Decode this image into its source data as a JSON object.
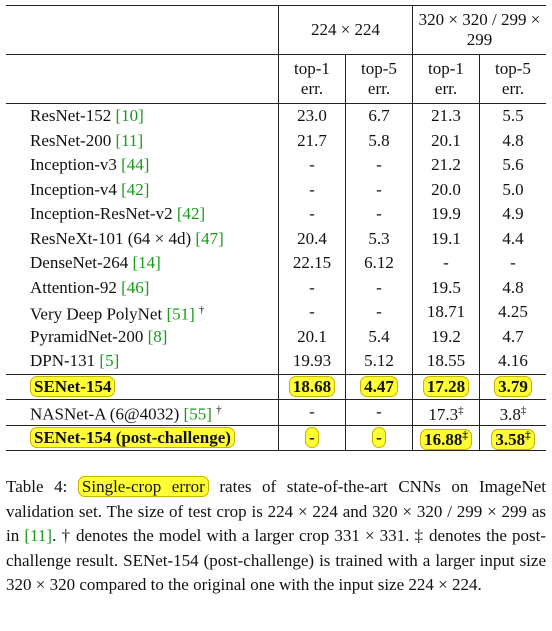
{
  "table": {
    "groups": [
      "224 × 224",
      "320 × 320 / 299 × 299"
    ],
    "subheaders": [
      "top-1 err.",
      "top-5 err.",
      "top-1 err.",
      "top-5 err."
    ],
    "rows": [
      {
        "model": "ResNet-152",
        "ref": "[10]",
        "cells": [
          "23.0",
          "6.7",
          "21.3",
          "5.5"
        ]
      },
      {
        "model": "ResNet-200",
        "ref": "[11]",
        "cells": [
          "21.7",
          "5.8",
          "20.1",
          "4.8"
        ]
      },
      {
        "model": "Inception-v3",
        "ref": "[44]",
        "cells": [
          "-",
          "-",
          "21.2",
          "5.6"
        ]
      },
      {
        "model": "Inception-v4",
        "ref": "[42]",
        "cells": [
          "-",
          "-",
          "20.0",
          "5.0"
        ]
      },
      {
        "model": "Inception-ResNet-v2",
        "ref": "[42]",
        "cells": [
          "-",
          "-",
          "19.9",
          "4.9"
        ]
      },
      {
        "model": "ResNeXt-101 (64 × 4d)",
        "ref": "[47]",
        "cells": [
          "20.4",
          "5.3",
          "19.1",
          "4.4"
        ]
      },
      {
        "model": "DenseNet-264",
        "ref": "[14]",
        "cells": [
          "22.15",
          "6.12",
          "-",
          "-"
        ]
      },
      {
        "model": "Attention-92",
        "ref": "[46]",
        "cells": [
          "-",
          "-",
          "19.5",
          "4.8"
        ]
      },
      {
        "model": "Very Deep PolyNet",
        "ref": "[51]",
        "mark": "†",
        "cells": [
          "-",
          "-",
          "18.71",
          "4.25"
        ]
      },
      {
        "model": "PyramidNet-200",
        "ref": "[8]",
        "cells": [
          "20.1",
          "5.4",
          "19.2",
          "4.7"
        ]
      },
      {
        "model": "DPN-131",
        "ref": "[5]",
        "cells": [
          "19.93",
          "5.12",
          "18.55",
          "4.16"
        ]
      },
      {
        "model": "SENet-154",
        "bold": true,
        "highlight": true,
        "cells": [
          "18.68",
          "4.47",
          "17.28",
          "3.79"
        ]
      },
      {
        "model": "NASNet-A (6@4032)",
        "ref": "[55]",
        "mark": "†",
        "cells": [
          "-",
          "-",
          {
            "text": "17.3",
            "sup": "‡"
          },
          {
            "text": "3.8",
            "sup": "‡"
          }
        ]
      },
      {
        "model": "SENet-154 (post-challenge)",
        "bold": true,
        "highlight": true,
        "cells": [
          "-",
          "-",
          {
            "text": "16.88",
            "sup": "‡"
          },
          {
            "text": "3.58",
            "sup": "‡"
          }
        ]
      }
    ]
  },
  "caption": [
    {
      "text": "Table 4: "
    },
    {
      "text": "Single-crop error",
      "highlight": true
    },
    {
      "text": " rates of state-of-the-art CNNs on ImageNet validation set. The size of test crop is 224 × 224 and 320 × 320 / 299 × 299 as in "
    },
    {
      "text": "[11]",
      "ref": true
    },
    {
      "text": ". † denotes the model with a larger crop 331 × 331. ‡ denotes the post-challenge result. SENet-154 (post-challenge) is trained with a larger input size 320 × 320 compared to the original one with the input size 224 × 224."
    }
  ]
}
